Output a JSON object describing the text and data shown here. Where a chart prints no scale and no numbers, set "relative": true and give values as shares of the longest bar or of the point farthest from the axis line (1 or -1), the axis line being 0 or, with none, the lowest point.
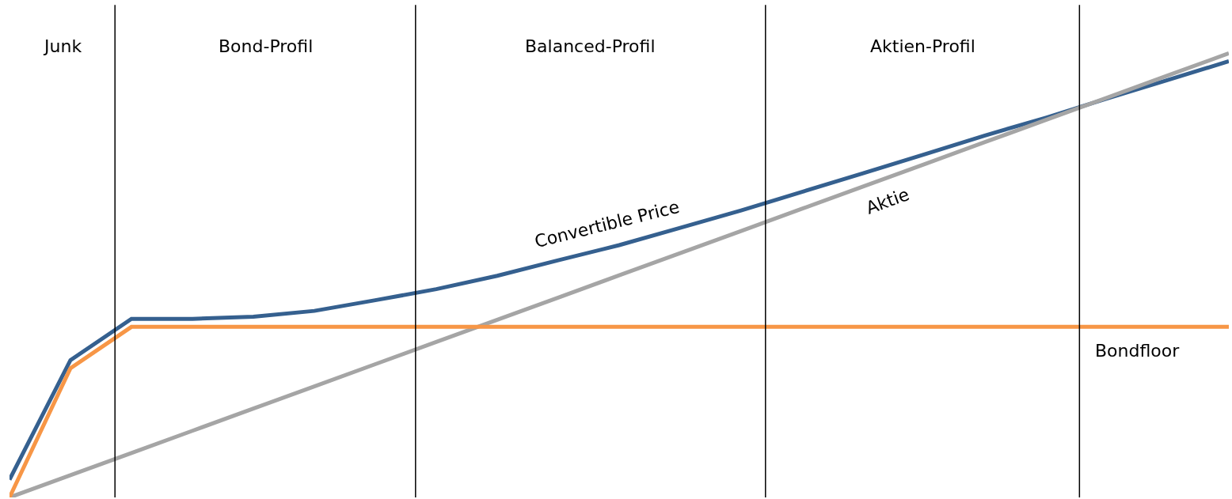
{
  "chart_data": {
    "type": "line",
    "relative": true,
    "categories": [
      null,
      null,
      null,
      null,
      null,
      null,
      null,
      null,
      null,
      null,
      null,
      null,
      null,
      null,
      null,
      null,
      null,
      null,
      null,
      null,
      null
    ],
    "series": [
      {
        "name": "Convertible Price",
        "color": "#35608f",
        "values": [
          0.04,
          0.309,
          0.402,
          0.402,
          0.407,
          0.42,
          0.444,
          0.469,
          0.499,
          0.534,
          0.568,
          0.607,
          0.646,
          0.688,
          0.73,
          0.772,
          0.815,
          0.855,
          0.898,
          0.94,
          0.982
        ]
      },
      {
        "name": "Aktie",
        "color": "#a5a5a5",
        "values": [
          0,
          0.05,
          0.1,
          0.15,
          0.2,
          0.25,
          0.3,
          0.35,
          0.4,
          0.45,
          0.5,
          0.55,
          0.6,
          0.65,
          0.7,
          0.75,
          0.8,
          0.85,
          0.9,
          0.95,
          1
        ]
      },
      {
        "name": "Bondfloor",
        "color": "#f79646",
        "values": [
          0,
          0.291,
          0.384,
          0.384,
          0.384,
          0.384,
          0.384,
          0.384,
          0.384,
          0.384,
          0.384,
          0.384,
          0.384,
          0.384,
          0.384,
          0.384,
          0.384,
          0.384,
          0.384,
          0.384,
          0.384
        ]
      }
    ],
    "annotations": [
      "Junk",
      "Bond-Profil",
      "Balanced-Profil",
      "Aktien-Profil"
    ],
    "legend": false,
    "marker": "none",
    "line_style": "solid"
  }
}
